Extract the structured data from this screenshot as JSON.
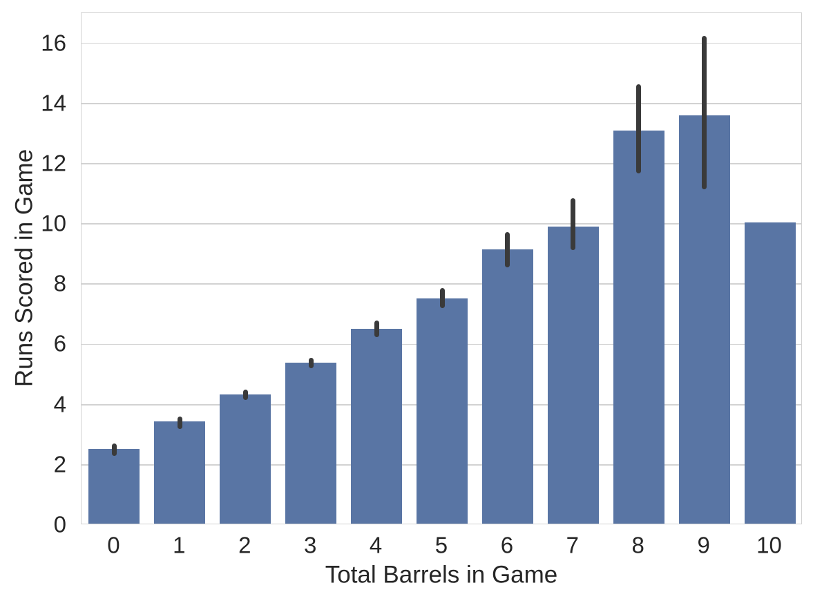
{
  "chart_data": {
    "type": "bar",
    "title": "",
    "xlabel": "Total Barrels in Game",
    "ylabel": "Runs Scored in Game",
    "categories": [
      "0",
      "1",
      "2",
      "3",
      "4",
      "5",
      "6",
      "7",
      "8",
      "9",
      "10"
    ],
    "values": [
      2.47,
      3.39,
      4.3,
      5.35,
      6.46,
      7.47,
      9.1,
      9.86,
      13.05,
      13.55,
      10.0
    ],
    "error_bars": [
      [
        2.3,
        2.7
      ],
      [
        3.2,
        3.6
      ],
      [
        4.15,
        4.5
      ],
      [
        5.2,
        5.55
      ],
      [
        6.25,
        6.8
      ],
      [
        7.2,
        7.87
      ],
      [
        8.55,
        9.72
      ],
      [
        9.14,
        10.85
      ],
      [
        11.67,
        14.63
      ],
      [
        11.16,
        16.25
      ],
      null
    ],
    "ylim": [
      0,
      17
    ],
    "ytick_values": [
      0,
      2,
      4,
      6,
      8,
      10,
      12,
      14,
      16
    ],
    "ytick_labels": [
      "0",
      "2",
      "4",
      "6",
      "8",
      "10",
      "12",
      "14",
      "16"
    ],
    "grid": "horizontal",
    "legend": null,
    "colors": {
      "bar": "#5975a4",
      "error": "#3a3a3a",
      "grid": "#d2d2d2",
      "spine": "#d2d2d2",
      "text": "#262626",
      "background": "#ffffff"
    }
  }
}
